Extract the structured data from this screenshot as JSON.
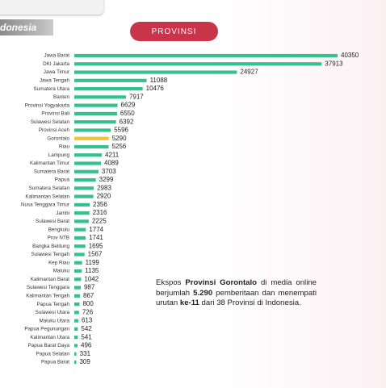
{
  "header": {
    "subtitle": "donesia",
    "button": "PROVINSI"
  },
  "chart_data": {
    "type": "bar",
    "orientation": "horizontal",
    "categories": [
      "Jawa Barat",
      "DKI Jakarta",
      "Jawa Timur",
      "Jawa Tengah",
      "Sumatera Utara",
      "Banten",
      "Provinsi Yogyakarta",
      "Provinsi Bali",
      "Sulawesi Selatan",
      "Provinsi Aceh",
      "Gorontalo",
      "Riau",
      "Lampung",
      "Kalimantan Timur",
      "Sumatera Barat",
      "Papua",
      "Sumatera Selatan",
      "Kalimantan Selatan",
      "Nusa Tenggara Timur",
      "Jambi",
      "Sulawesi Barat",
      "Bengkulu",
      "Prov NTB",
      "Bangka Belitung",
      "Sulawesi Tengah",
      "Kep Riau",
      "Maluku",
      "Kalimantan Barat",
      "Sulawesi Tenggara",
      "Kalimantan Tengah",
      "Papua Tengah",
      "Sulawesi Utara",
      "Maluku Utara",
      "Papua Pegunungan",
      "Kalimantan Utara",
      "Papua Barat Daya",
      "Papua Selatan",
      "Papua Barat"
    ],
    "values": [
      40350,
      37913,
      24927,
      11088,
      10476,
      7917,
      6629,
      6550,
      6392,
      5596,
      5290,
      5256,
      4211,
      4089,
      3703,
      3299,
      2983,
      2920,
      2356,
      2316,
      2225,
      1774,
      1741,
      1695,
      1567,
      1199,
      1135,
      1042,
      987,
      867,
      800,
      726,
      613,
      542,
      541,
      496,
      331,
      309
    ],
    "colors": [
      "#35c18d",
      "#35c18d",
      "#35c18d",
      "#35c18d",
      "#35c18d",
      "#35c18d",
      "#35c18d",
      "#35c18d",
      "#35c18d",
      "#35c18d",
      "#f1c232",
      "#35c18d",
      "#35c18d",
      "#35c18d",
      "#35c18d",
      "#35c18d",
      "#35c18d",
      "#35c18d",
      "#35c18d",
      "#35c18d",
      "#35c18d",
      "#35c18d",
      "#35c18d",
      "#35c18d",
      "#35c18d",
      "#35c18d",
      "#35c18d",
      "#35c18d",
      "#35c18d",
      "#35c18d",
      "#35c18d",
      "#35c18d",
      "#35c18d",
      "#35c18d",
      "#35c18d",
      "#35c18d",
      "#35c18d",
      "#35c18d"
    ],
    "annotation": [
      {
        "text": "Ekspos ",
        "bold": false
      },
      {
        "text": "Provinsi Gorontalo",
        "bold": true
      },
      {
        "text": " di media online berjumlah ",
        "bold": false
      },
      {
        "text": "5.290",
        "bold": true
      },
      {
        "text": " pemberitaan dan menempati urutan ",
        "bold": false
      },
      {
        "text": "ke-11",
        "bold": true
      },
      {
        "text": " dari 38 Provinsi di Indonesia.",
        "bold": false
      }
    ]
  }
}
